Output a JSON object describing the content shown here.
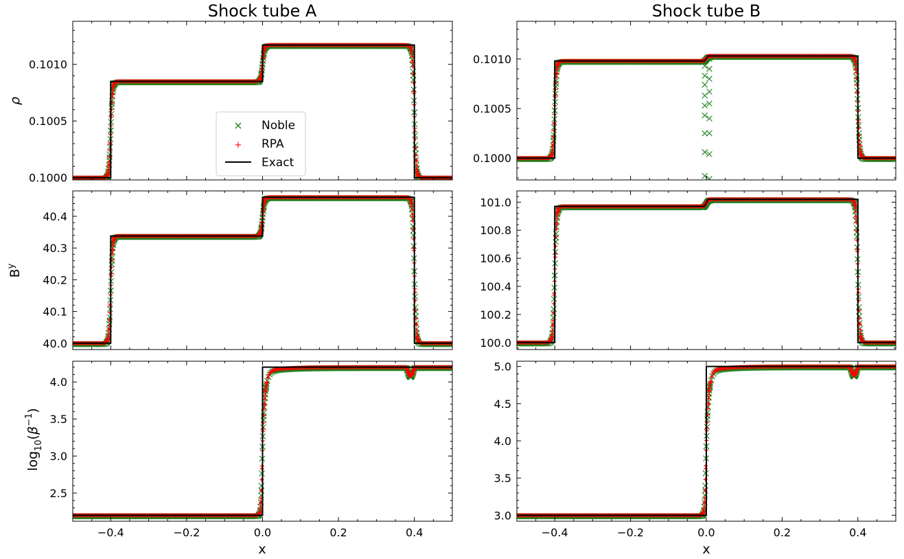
{
  "chart_data": {
    "type": "line",
    "x_label": "x",
    "x_ticks": [
      "−0.4",
      "−0.2",
      "0.0",
      "0.2",
      "0.4"
    ],
    "x_tick_values": [
      -0.4,
      -0.2,
      0.0,
      0.2,
      0.4
    ],
    "xlim": [
      -0.5,
      0.5
    ],
    "legend": {
      "placement": "center-left (Shock tube A, top panel)",
      "entries": [
        {
          "name": "Noble",
          "marker": "x",
          "color": "#1a7f1a"
        },
        {
          "name": "RPA",
          "marker": "+",
          "color": "#ff0000"
        },
        {
          "name": "Exact",
          "marker": "line",
          "color": "#000000"
        }
      ]
    },
    "columns": [
      {
        "title": "Shock tube A",
        "panels": [
          {
            "quantity": "rho",
            "ylim": [
              0.09998,
              0.10138
            ],
            "y_ticks": [
              "0.1000",
              "0.1005",
              "0.1010"
            ],
            "y_tick_values": [
              0.1,
              0.1005,
              0.101
            ],
            "exact": {
              "x": [
                -0.5,
                -0.4,
                -0.4,
                0.0,
                0.0,
                0.4,
                0.4,
                0.5
              ],
              "y": [
                0.1,
                0.1,
                0.10085,
                0.10085,
                0.10117,
                0.10117,
                0.1,
                0.1
              ]
            }
          },
          {
            "quantity": "By",
            "ylim": [
              39.98,
              40.48
            ],
            "y_ticks": [
              "40.0",
              "40.1",
              "40.2",
              "40.3",
              "40.4"
            ],
            "y_tick_values": [
              40.0,
              40.1,
              40.2,
              40.3,
              40.4
            ],
            "exact": {
              "x": [
                -0.5,
                -0.4,
                -0.4,
                0.0,
                0.0,
                0.4,
                0.4,
                0.5
              ],
              "y": [
                40.0,
                40.0,
                40.338,
                40.338,
                40.46,
                40.46,
                40.0,
                40.0
              ]
            }
          },
          {
            "quantity": "log10(beta^-1)",
            "ylim": [
              2.12,
              4.28
            ],
            "y_ticks": [
              "2.5",
              "3.0",
              "3.5",
              "4.0"
            ],
            "y_tick_values": [
              2.5,
              3.0,
              3.5,
              4.0
            ],
            "exact": {
              "x": [
                -0.5,
                0.0,
                0.0,
                0.5
              ],
              "y": [
                2.2,
                2.2,
                4.2,
                4.2
              ]
            }
          }
        ]
      },
      {
        "title": "Shock tube B",
        "panels": [
          {
            "quantity": "rho",
            "ylim": [
              0.09978,
              0.10138
            ],
            "y_ticks": [
              "0.1000",
              "0.1005",
              "0.1010"
            ],
            "y_tick_values": [
              0.1,
              0.1005,
              0.101
            ],
            "exact": {
              "x": [
                -0.5,
                -0.4,
                -0.4,
                -0.005,
                0.005,
                0.4,
                0.4,
                0.5
              ],
              "y": [
                0.1,
                0.1,
                0.10098,
                0.10098,
                0.10103,
                0.10103,
                0.1,
                0.1
              ]
            }
          },
          {
            "quantity": "By",
            "ylim": [
              99.95,
              101.08
            ],
            "y_ticks": [
              "100.0",
              "100.2",
              "100.4",
              "100.6",
              "100.8",
              "101.0"
            ],
            "y_tick_values": [
              100.0,
              100.2,
              100.4,
              100.6,
              100.8,
              101.0
            ],
            "exact": {
              "x": [
                -0.5,
                -0.4,
                -0.4,
                -0.005,
                0.005,
                0.4,
                0.4,
                0.5
              ],
              "y": [
                100.0,
                100.0,
                100.97,
                100.97,
                101.02,
                101.02,
                100.0,
                100.0
              ]
            }
          },
          {
            "quantity": "log10(beta^-1)",
            "ylim": [
              2.92,
              5.07
            ],
            "y_ticks": [
              "3.0",
              "3.5",
              "4.0",
              "4.5",
              "5.0"
            ],
            "y_tick_values": [
              3.0,
              3.5,
              4.0,
              4.5,
              5.0
            ],
            "exact": {
              "x": [
                -0.5,
                0.0,
                0.0,
                0.5
              ],
              "y": [
                3.0,
                3.0,
                5.0,
                5.0
              ]
            }
          }
        ]
      }
    ]
  }
}
